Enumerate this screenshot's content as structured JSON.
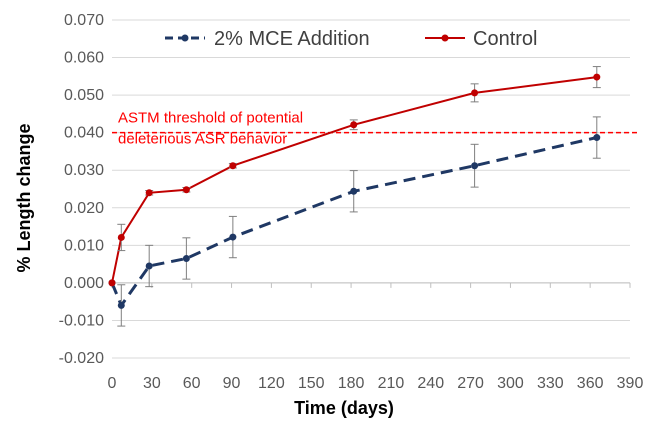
{
  "chart_data": {
    "type": "line",
    "xlabel": "Time (days)",
    "ylabel": "% Length change",
    "xlim": [
      0,
      390
    ],
    "ylim": [
      -0.02,
      0.07
    ],
    "x_ticks": [
      "0",
      "30",
      "60",
      "90",
      "120",
      "150",
      "180",
      "210",
      "240",
      "270",
      "300",
      "330",
      "360",
      "390"
    ],
    "y_ticks": [
      "-0.020",
      "-0.010",
      "0.000",
      "0.010",
      "0.020",
      "0.030",
      "0.040",
      "0.050",
      "0.060",
      "0.070"
    ],
    "grid": "horizontal",
    "legend_position": "top",
    "series": [
      {
        "name": "2% MCE Addition",
        "color": "#1f3864",
        "line_style": "dashed",
        "x": [
          0,
          7,
          28,
          56,
          91,
          182,
          273,
          365
        ],
        "y": [
          0.0,
          -0.006,
          0.0045,
          0.0065,
          0.0122,
          0.0244,
          0.0312,
          0.0387
        ],
        "error": [
          0.0,
          0.0055,
          0.0055,
          0.0055,
          0.0055,
          0.0055,
          0.0057,
          0.0055
        ]
      },
      {
        "name": "Control",
        "color": "#c00000",
        "line_style": "solid",
        "x": [
          0,
          7,
          28,
          56,
          91,
          182,
          273,
          365
        ],
        "y": [
          0.0,
          0.0121,
          0.024,
          0.0248,
          0.0312,
          0.0421,
          0.0506,
          0.0548
        ],
        "error": [
          0.0,
          0.0035,
          0.0006,
          0.0006,
          0.0006,
          0.0013,
          0.0024,
          0.0028
        ]
      }
    ],
    "threshold": {
      "y": 0.04,
      "color": "#ff0000",
      "label_lines": [
        "ASTM threshold of potential",
        "deleterious ASR behavior"
      ]
    }
  }
}
